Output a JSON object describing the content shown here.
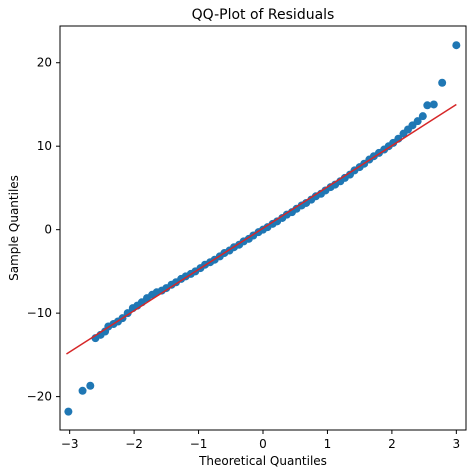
{
  "chart_data": {
    "type": "scatter",
    "title": "QQ-Plot of Residuals",
    "xlabel": "Theoretical Quantiles",
    "ylabel": "Sample Quantiles",
    "xlim": [
      -3.15,
      3.15
    ],
    "ylim": [
      -24,
      24.4
    ],
    "xticks": [
      -3,
      -2,
      -1,
      0,
      1,
      2,
      3
    ],
    "xtick_labels": [
      "−3",
      "−2",
      "−1",
      "0",
      "1",
      "2",
      "3"
    ],
    "yticks": [
      -20,
      -10,
      0,
      10,
      20
    ],
    "ytick_labels": [
      "−20",
      "−10",
      "0",
      "10",
      "20"
    ],
    "grid": false,
    "point_color": "#1f77b4",
    "line_color": "#d62728",
    "reference_line": {
      "x": [
        -3.05,
        3.0
      ],
      "y": [
        -14.9,
        15.0
      ]
    },
    "points": [
      {
        "x": -3.02,
        "y": -21.8
      },
      {
        "x": -2.8,
        "y": -19.3
      },
      {
        "x": -2.68,
        "y": -18.7
      },
      {
        "x": -2.6,
        "y": -13.0
      },
      {
        "x": -2.52,
        "y": -12.6
      },
      {
        "x": -2.45,
        "y": -12.2
      },
      {
        "x": -2.4,
        "y": -11.6
      },
      {
        "x": -2.32,
        "y": -11.3
      },
      {
        "x": -2.25,
        "y": -11.0
      },
      {
        "x": -2.18,
        "y": -10.6
      },
      {
        "x": -2.1,
        "y": -10.0
      },
      {
        "x": -2.02,
        "y": -9.4
      },
      {
        "x": -1.95,
        "y": -9.1
      },
      {
        "x": -1.88,
        "y": -8.7
      },
      {
        "x": -1.8,
        "y": -8.2
      },
      {
        "x": -1.72,
        "y": -7.8
      },
      {
        "x": -1.65,
        "y": -7.5
      },
      {
        "x": -1.57,
        "y": -7.3
      },
      {
        "x": -1.5,
        "y": -7.0
      },
      {
        "x": -1.42,
        "y": -6.6
      },
      {
        "x": -1.35,
        "y": -6.3
      },
      {
        "x": -1.27,
        "y": -5.9
      },
      {
        "x": -1.2,
        "y": -5.6
      },
      {
        "x": -1.12,
        "y": -5.3
      },
      {
        "x": -1.05,
        "y": -5.0
      },
      {
        "x": -0.97,
        "y": -4.6
      },
      {
        "x": -0.9,
        "y": -4.2
      },
      {
        "x": -0.82,
        "y": -3.9
      },
      {
        "x": -0.75,
        "y": -3.6
      },
      {
        "x": -0.67,
        "y": -3.2
      },
      {
        "x": -0.6,
        "y": -2.8
      },
      {
        "x": -0.52,
        "y": -2.5
      },
      {
        "x": -0.45,
        "y": -2.1
      },
      {
        "x": -0.37,
        "y": -1.8
      },
      {
        "x": -0.3,
        "y": -1.4
      },
      {
        "x": -0.22,
        "y": -1.1
      },
      {
        "x": -0.15,
        "y": -0.7
      },
      {
        "x": -0.07,
        "y": -0.3
      },
      {
        "x": 0.0,
        "y": 0.0
      },
      {
        "x": 0.07,
        "y": 0.3
      },
      {
        "x": 0.15,
        "y": 0.7
      },
      {
        "x": 0.22,
        "y": 1.0
      },
      {
        "x": 0.3,
        "y": 1.4
      },
      {
        "x": 0.37,
        "y": 1.8
      },
      {
        "x": 0.45,
        "y": 2.1
      },
      {
        "x": 0.52,
        "y": 2.5
      },
      {
        "x": 0.6,
        "y": 2.9
      },
      {
        "x": 0.67,
        "y": 3.2
      },
      {
        "x": 0.75,
        "y": 3.6
      },
      {
        "x": 0.82,
        "y": 4.0
      },
      {
        "x": 0.9,
        "y": 4.3
      },
      {
        "x": 0.97,
        "y": 4.7
      },
      {
        "x": 1.05,
        "y": 5.1
      },
      {
        "x": 1.12,
        "y": 5.4
      },
      {
        "x": 1.2,
        "y": 5.8
      },
      {
        "x": 1.27,
        "y": 6.2
      },
      {
        "x": 1.35,
        "y": 6.6
      },
      {
        "x": 1.42,
        "y": 7.1
      },
      {
        "x": 1.5,
        "y": 7.5
      },
      {
        "x": 1.57,
        "y": 7.9
      },
      {
        "x": 1.65,
        "y": 8.4
      },
      {
        "x": 1.72,
        "y": 8.8
      },
      {
        "x": 1.8,
        "y": 9.2
      },
      {
        "x": 1.88,
        "y": 9.6
      },
      {
        "x": 1.95,
        "y": 10.0
      },
      {
        "x": 2.02,
        "y": 10.4
      },
      {
        "x": 2.1,
        "y": 10.9
      },
      {
        "x": 2.18,
        "y": 11.5
      },
      {
        "x": 2.25,
        "y": 12.0
      },
      {
        "x": 2.32,
        "y": 12.5
      },
      {
        "x": 2.4,
        "y": 13.0
      },
      {
        "x": 2.48,
        "y": 13.6
      },
      {
        "x": 2.55,
        "y": 14.9
      },
      {
        "x": 2.65,
        "y": 15.0
      },
      {
        "x": 2.78,
        "y": 17.6
      },
      {
        "x": 3.0,
        "y": 22.1
      }
    ]
  }
}
